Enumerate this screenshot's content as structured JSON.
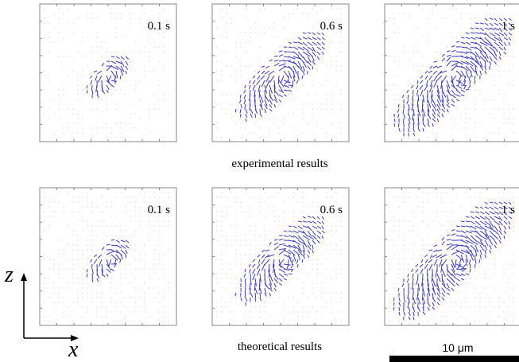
{
  "rows": [
    {
      "caption": "experimental results",
      "times": [
        "0.1 s",
        "0.6 s",
        "1 s"
      ]
    },
    {
      "caption": "theoretical results",
      "times": [
        "0.1 s",
        "0.6 s",
        "1 s"
      ]
    }
  ],
  "axes": {
    "vertical": "z",
    "horizontal": "x"
  },
  "scale_bar": "10 μm"
}
